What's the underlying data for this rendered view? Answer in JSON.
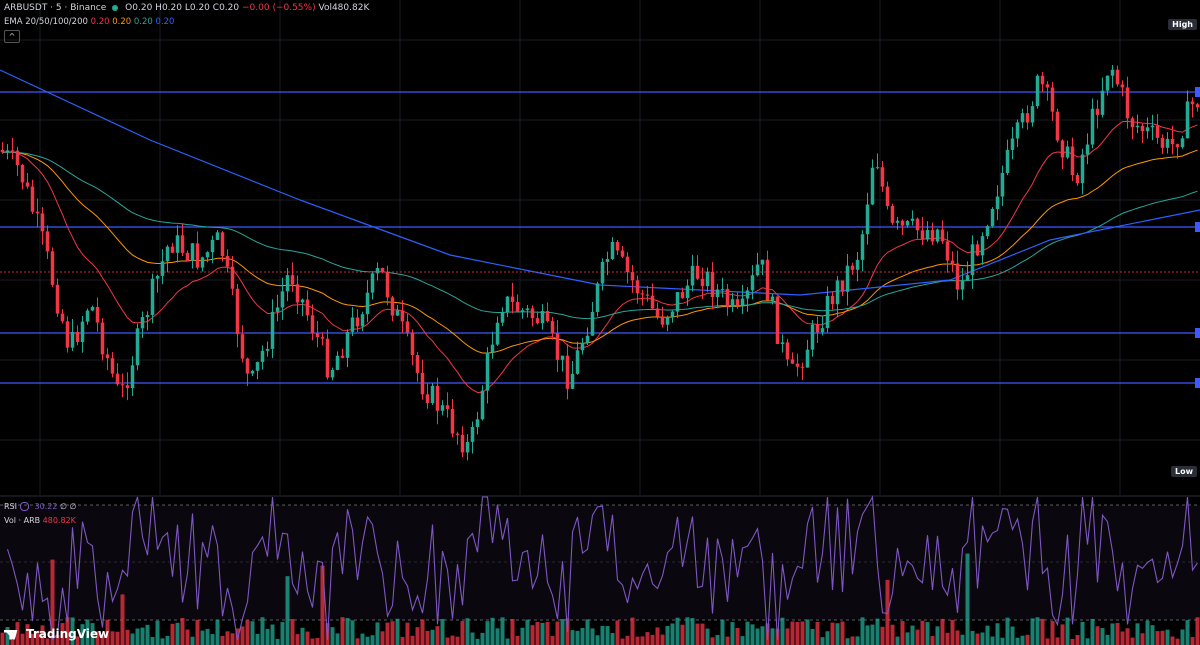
{
  "header": {
    "symbol": "ARBUSDT · 5 · Binance",
    "open": "O0.20",
    "high": "H0.20",
    "low": "L0.20",
    "close": "C0.20",
    "change": "−0.00 (−0.55%)",
    "volume": "Vol480.82K"
  },
  "ema": {
    "label": "EMA 20/50/100/200",
    "v1": "0.20",
    "v2": "0.20",
    "v3": "0.20",
    "v4": "0.20"
  },
  "collapse_glyph": "^",
  "price_tags": {
    "high": "High",
    "low": "Low"
  },
  "rsi": {
    "label": "RSI",
    "value": "30.22",
    "extra": "∅ ∅"
  },
  "vol": {
    "label": "Vol · ARB",
    "value": "480.82K"
  },
  "brand": {
    "name": "TradingView"
  },
  "colors": {
    "up": "#22ab94",
    "down": "#f23645",
    "ema20": "#f23645",
    "ema50": "#ff9800",
    "ema100": "#26a69a",
    "ema200": "#2962ff",
    "hline": "#3d5afe",
    "rsi": "#7e57c2"
  },
  "chart_data": {
    "type": "candlestick",
    "series_count": 240,
    "rsi_band": [
      30,
      70
    ],
    "volume_unit": "K"
  }
}
